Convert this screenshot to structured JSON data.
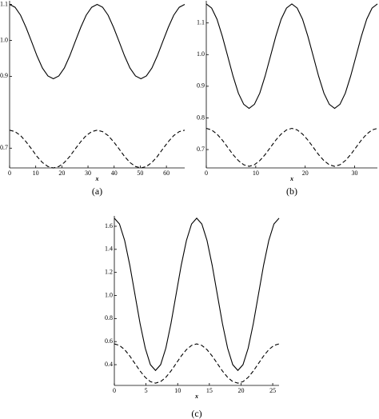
{
  "chart_data": [
    {
      "type": "line",
      "x_label": "x",
      "caption": "(a)",
      "xlim": [
        0,
        67
      ],
      "xticks": [
        0,
        10,
        20,
        30,
        40,
        50,
        60
      ],
      "ylim": [
        0.645,
        1.11
      ],
      "yticks": [
        {
          "value": 0.7,
          "label": "0.7"
        },
        {
          "value": 0.9,
          "label": "0.9"
        },
        {
          "value": 1,
          "label": "1.0"
        },
        {
          "value": 1.1,
          "label": "1.1"
        }
      ],
      "x": [
        0,
        2.09,
        4.19,
        6.28,
        8.38,
        10.47,
        12.56,
        14.66,
        16.75,
        18.84,
        20.94,
        23.03,
        25.13,
        27.22,
        29.31,
        31.41,
        33.5,
        35.59,
        37.69,
        39.78,
        41.88,
        43.97,
        46.06,
        48.16,
        50.25,
        52.34,
        54.44,
        56.53,
        58.63,
        60.72,
        62.81,
        64.91,
        67
      ],
      "series": [
        {
          "color": "#000000",
          "line_style": "solid",
          "values": [
            1.1,
            1.092,
            1.07,
            1.036,
            0.997,
            0.957,
            0.923,
            0.901,
            0.893,
            0.901,
            0.923,
            0.957,
            0.997,
            1.036,
            1.07,
            1.092,
            1.1,
            1.092,
            1.07,
            1.036,
            0.997,
            0.957,
            0.923,
            0.901,
            0.893,
            0.901,
            0.923,
            0.957,
            0.997,
            1.036,
            1.07,
            1.092,
            1.1
          ]
        },
        {
          "color": "#000000",
          "line_style": "dashed",
          "values": [
            0.75,
            0.746,
            0.735,
            0.718,
            0.698,
            0.677,
            0.66,
            0.649,
            0.645,
            0.649,
            0.66,
            0.677,
            0.698,
            0.718,
            0.735,
            0.746,
            0.75,
            0.746,
            0.735,
            0.718,
            0.698,
            0.677,
            0.66,
            0.649,
            0.645,
            0.649,
            0.66,
            0.677,
            0.698,
            0.718,
            0.735,
            0.746,
            0.75
          ]
        }
      ]
    },
    {
      "type": "line",
      "x_label": "x",
      "caption": "(b)",
      "xlim": [
        0,
        34.6
      ],
      "xticks": [
        0,
        10,
        20,
        30
      ],
      "ylim": [
        0.642,
        1.17
      ],
      "yticks": [
        {
          "value": 0.7,
          "label": "0.7"
        },
        {
          "value": 0.8,
          "label": "0.8"
        },
        {
          "value": 0.9,
          "label": "0.9"
        },
        {
          "value": 1,
          "label": "1.0"
        },
        {
          "value": 1.1,
          "label": "1.1"
        }
      ],
      "x": [
        0,
        1.08,
        2.16,
        3.24,
        4.33,
        5.41,
        6.49,
        7.57,
        8.65,
        9.73,
        10.81,
        11.89,
        12.98,
        14.06,
        15.14,
        16.22,
        17.3,
        18.38,
        19.46,
        20.54,
        21.63,
        22.71,
        23.79,
        24.87,
        25.95,
        27.03,
        28.11,
        29.19,
        30.28,
        31.36,
        32.44,
        33.52,
        34.6
      ],
      "series": [
        {
          "color": "#000000",
          "line_style": "solid",
          "values": [
            1.16,
            1.147,
            1.112,
            1.058,
            0.995,
            0.932,
            0.878,
            0.843,
            0.83,
            0.843,
            0.878,
            0.932,
            0.995,
            1.058,
            1.112,
            1.147,
            1.16,
            1.147,
            1.112,
            1.058,
            0.995,
            0.932,
            0.878,
            0.843,
            0.83,
            0.843,
            0.878,
            0.932,
            0.995,
            1.058,
            1.112,
            1.147,
            1.16
          ]
        },
        {
          "color": "#000000",
          "line_style": "dashed",
          "values": [
            0.767,
            0.762,
            0.749,
            0.73,
            0.707,
            0.684,
            0.665,
            0.652,
            0.647,
            0.652,
            0.665,
            0.684,
            0.707,
            0.73,
            0.749,
            0.762,
            0.767,
            0.762,
            0.749,
            0.73,
            0.707,
            0.684,
            0.665,
            0.652,
            0.647,
            0.652,
            0.665,
            0.684,
            0.707,
            0.73,
            0.749,
            0.762,
            0.767
          ]
        }
      ]
    },
    {
      "type": "line",
      "x_label": "x",
      "caption": "(c)",
      "xlim": [
        0,
        26
      ],
      "xticks": [
        0,
        5,
        10,
        15,
        20,
        25
      ],
      "ylim": [
        0.22,
        1.69
      ],
      "yticks": [
        0.4,
        0.6,
        0.8,
        {
          "value": 1,
          "label": "1.0"
        },
        1.2,
        1.4,
        1.6
      ],
      "x": [
        0,
        0.81,
        1.63,
        2.44,
        3.25,
        4.06,
        4.88,
        5.69,
        6.5,
        7.31,
        8.13,
        8.94,
        9.75,
        10.56,
        11.38,
        12.19,
        13,
        13.81,
        14.63,
        15.44,
        16.25,
        17.06,
        17.88,
        18.69,
        19.5,
        20.31,
        21.13,
        21.94,
        22.75,
        23.56,
        24.38,
        25.19,
        26
      ],
      "series": [
        {
          "color": "#000000",
          "line_style": "solid",
          "values": [
            1.67,
            1.62,
            1.477,
            1.263,
            1.01,
            0.757,
            0.543,
            0.4,
            0.35,
            0.4,
            0.543,
            0.757,
            1.01,
            1.263,
            1.477,
            1.62,
            1.67,
            1.62,
            1.477,
            1.263,
            1.01,
            0.757,
            0.543,
            0.4,
            0.35,
            0.4,
            0.543,
            0.757,
            1.01,
            1.263,
            1.477,
            1.62,
            1.67
          ]
        },
        {
          "color": "#000000",
          "line_style": "dashed",
          "values": [
            0.58,
            0.567,
            0.53,
            0.475,
            0.41,
            0.345,
            0.29,
            0.253,
            0.24,
            0.253,
            0.29,
            0.345,
            0.41,
            0.475,
            0.53,
            0.567,
            0.58,
            0.567,
            0.53,
            0.475,
            0.41,
            0.345,
            0.29,
            0.253,
            0.24,
            0.253,
            0.29,
            0.345,
            0.41,
            0.475,
            0.53,
            0.567,
            0.58
          ]
        }
      ]
    }
  ]
}
